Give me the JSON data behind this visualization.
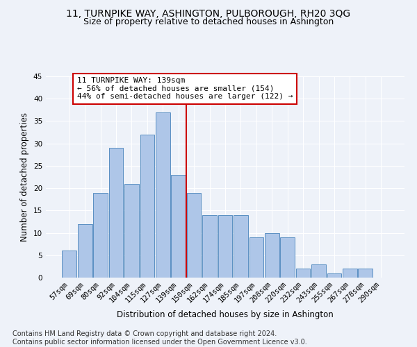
{
  "title": "11, TURNPIKE WAY, ASHINGTON, PULBOROUGH, RH20 3QG",
  "subtitle": "Size of property relative to detached houses in Ashington",
  "xlabel": "Distribution of detached houses by size in Ashington",
  "ylabel": "Number of detached properties",
  "bar_labels": [
    "57sqm",
    "69sqm",
    "80sqm",
    "92sqm",
    "104sqm",
    "115sqm",
    "127sqm",
    "139sqm",
    "150sqm",
    "162sqm",
    "174sqm",
    "185sqm",
    "197sqm",
    "208sqm",
    "220sqm",
    "232sqm",
    "243sqm",
    "255sqm",
    "267sqm",
    "278sqm",
    "290sqm"
  ],
  "bar_values": [
    6,
    12,
    19,
    29,
    21,
    32,
    37,
    23,
    19,
    14,
    14,
    14,
    9,
    10,
    9,
    2,
    3,
    1,
    2,
    2,
    0
  ],
  "bar_color": "#aec6e8",
  "bar_edge_color": "#5a8fc2",
  "highlight_index": 7,
  "highlight_line_color": "#cc0000",
  "annotation_text": "11 TURNPIKE WAY: 139sqm\n← 56% of detached houses are smaller (154)\n44% of semi-detached houses are larger (122) →",
  "annotation_box_color": "#ffffff",
  "annotation_box_edge_color": "#cc0000",
  "ylim": [
    0,
    45
  ],
  "yticks": [
    0,
    5,
    10,
    15,
    20,
    25,
    30,
    35,
    40,
    45
  ],
  "background_color": "#eef2f9",
  "footer_text": "Contains HM Land Registry data © Crown copyright and database right 2024.\nContains public sector information licensed under the Open Government Licence v3.0.",
  "title_fontsize": 10,
  "subtitle_fontsize": 9,
  "xlabel_fontsize": 8.5,
  "ylabel_fontsize": 8.5,
  "tick_fontsize": 7.5,
  "annotation_fontsize": 8,
  "footer_fontsize": 7
}
